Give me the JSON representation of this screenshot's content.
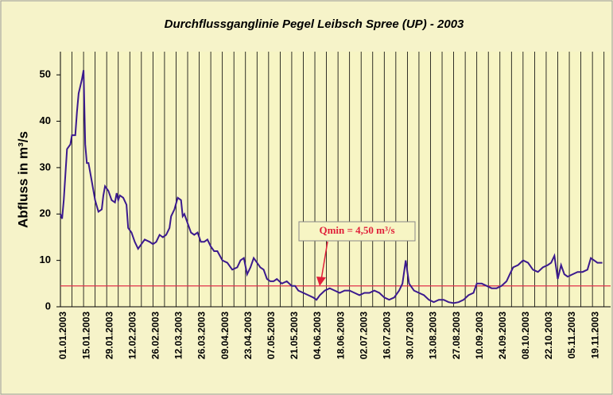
{
  "chart_data": {
    "type": "line",
    "title": "Durchflussganglinie Pegel Leibsch Spree (UP) - 2003",
    "y_label": "Abfluss in m³/s",
    "annotation": "Qmin = 4,50 m³/s",
    "threshold": 4.5,
    "threshold_color": "#e0304a",
    "xlim": [
      "01.01.2003",
      "30.11.2003"
    ],
    "xticks": [
      "01.01.2003",
      "15.01.2003",
      "29.01.2003",
      "12.02.2003",
      "26.02.2003",
      "12.03.2003",
      "26.03.2003",
      "09.04.2003",
      "23.04.2003",
      "07.05.2003",
      "21.05.2003",
      "04.06.2003",
      "18.06.2003",
      "02.07.2003",
      "16.07.2003",
      "30.07.2003",
      "13.08.2003",
      "27.08.2003",
      "10.09.2003",
      "24.09.2003",
      "08.10.2003",
      "22.10.2003",
      "05.11.2003",
      "19.11.2003"
    ],
    "ylim": [
      0,
      55
    ],
    "yticks": [
      0,
      10,
      20,
      30,
      40,
      50
    ],
    "grid": true,
    "x": [
      "01.01.2003",
      "02.01.2003",
      "03.01.2003",
      "05.01.2003",
      "07.01.2003",
      "08.01.2003",
      "10.01.2003",
      "11.01.2003",
      "12.01.2003",
      "14.01.2003",
      "15.01.2003",
      "16.01.2003",
      "17.01.2003",
      "18.01.2003",
      "20.01.2003",
      "22.01.2003",
      "24.01.2003",
      "26.01.2003",
      "27.01.2003",
      "28.01.2003",
      "30.01.2003",
      "01.02.2003",
      "03.02.2003",
      "04.02.2003",
      "05.02.2003",
      "06.02.2003",
      "08.02.2003",
      "10.02.2003",
      "11.02.2003",
      "13.02.2003",
      "15.02.2003",
      "17.02.2003",
      "19.02.2003",
      "21.02.2003",
      "24.02.2003",
      "26.02.2003",
      "28.02.2003",
      "02.03.2003",
      "04.03.2003",
      "06.03.2003",
      "08.03.2003",
      "09.03.2003",
      "11.03.2003",
      "13.03.2003",
      "15.03.2003",
      "16.03.2003",
      "17.03.2003",
      "19.03.2003",
      "21.03.2003",
      "23.03.2003",
      "25.03.2003",
      "27.03.2003",
      "29.03.2003",
      "31.03.2003",
      "02.04.2003",
      "04.04.2003",
      "06.04.2003",
      "09.04.2003",
      "12.04.2003",
      "15.04.2003",
      "18.04.2003",
      "20.04.2003",
      "22.04.2003",
      "24.04.2003",
      "26.04.2003",
      "28.04.2003",
      "30.04.2003",
      "02.05.2003",
      "04.05.2003",
      "06.05.2003",
      "08.05.2003",
      "10.05.2003",
      "12.05.2003",
      "15.05.2003",
      "18.05.2003",
      "21.05.2003",
      "23.05.2003",
      "25.05.2003",
      "28.05.2003",
      "31.05.2003",
      "03.06.2003",
      "05.06.2003",
      "07.06.2003",
      "10.06.2003",
      "13.06.2003",
      "16.06.2003",
      "19.06.2003",
      "22.06.2003",
      "25.06.2003",
      "28.06.2003",
      "01.07.2003",
      "04.07.2003",
      "07.07.2003",
      "10.07.2003",
      "13.07.2003",
      "16.07.2003",
      "19.07.2003",
      "22.07.2003",
      "25.07.2003",
      "27.07.2003",
      "29.07.2003",
      "31.07.2003",
      "03.08.2003",
      "06.08.2003",
      "09.08.2003",
      "12.08.2003",
      "15.08.2003",
      "18.08.2003",
      "21.08.2003",
      "24.08.2003",
      "27.08.2003",
      "30.08.2003",
      "02.09.2003",
      "05.09.2003",
      "08.09.2003",
      "10.09.2003",
      "13.09.2003",
      "16.09.2003",
      "19.09.2003",
      "22.09.2003",
      "25.09.2003",
      "28.09.2003",
      "30.09.2003",
      "02.10.2003",
      "05.10.2003",
      "08.10.2003",
      "11.10.2003",
      "14.10.2003",
      "17.10.2003",
      "20.10.2003",
      "23.10.2003",
      "25.10.2003",
      "27.10.2003",
      "29.10.2003",
      "31.10.2003",
      "02.11.2003",
      "04.11.2003",
      "07.11.2003",
      "10.11.2003",
      "13.11.2003",
      "16.11.2003",
      "18.11.2003",
      "20.11.2003",
      "22.11.2003",
      "25.11.2003"
    ],
    "series": [
      {
        "name": "Durchfluss",
        "color": "#3b1a8e",
        "values": [
          20,
          19,
          23,
          34,
          35,
          37,
          37,
          42,
          46,
          49,
          51,
          35,
          31,
          31,
          27,
          23,
          20.5,
          21,
          24,
          26,
          25,
          23,
          22.5,
          24.5,
          23,
          24,
          23.5,
          22,
          17,
          16,
          14,
          12.5,
          13.5,
          14.5,
          14,
          13.5,
          14,
          15.5,
          15,
          15.5,
          17,
          19.5,
          21,
          23.5,
          23,
          19.5,
          20,
          18,
          16,
          15.5,
          16,
          14,
          14,
          14.5,
          13,
          12,
          12,
          10,
          9.5,
          8,
          8.5,
          10,
          10.5,
          7,
          8.5,
          10.5,
          9.5,
          8.5,
          8,
          6,
          5.5,
          5.5,
          6,
          5,
          5.5,
          4.5,
          4.5,
          3.5,
          3,
          2.5,
          2,
          1.5,
          2.5,
          3.5,
          4,
          3.5,
          3,
          3.5,
          3.5,
          3,
          2.5,
          3,
          3,
          3.5,
          3,
          2,
          1.5,
          2,
          3.5,
          5,
          10,
          5,
          3.5,
          3,
          2.5,
          1.5,
          1,
          1.5,
          1.5,
          1,
          0.8,
          1,
          1.5,
          2.5,
          3,
          5,
          5,
          4.5,
          4,
          4,
          4.5,
          5.5,
          7,
          8.5,
          9,
          10,
          9.5,
          8,
          7.5,
          8.5,
          9,
          9.5,
          11,
          6,
          9,
          7,
          6.5,
          7,
          7.5,
          7.5,
          8,
          10.5,
          10,
          9.5,
          9.5
        ]
      }
    ]
  }
}
